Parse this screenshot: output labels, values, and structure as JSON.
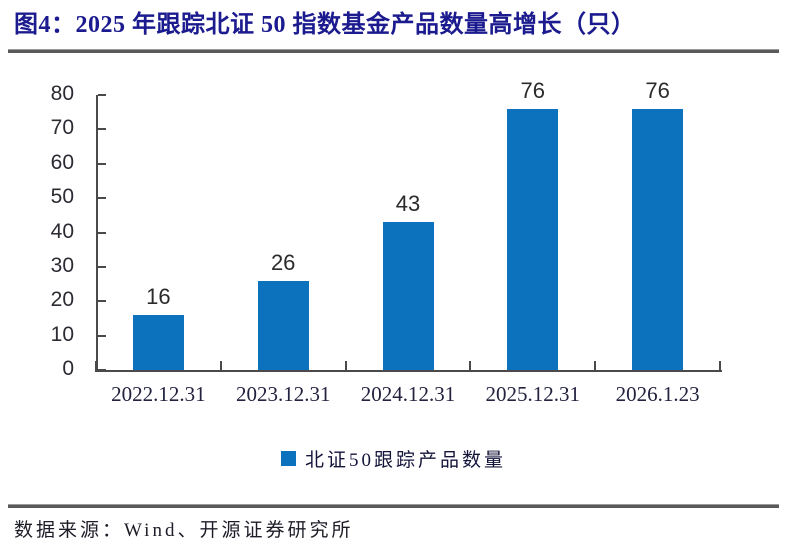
{
  "figure": {
    "title": "图4：2025 年跟踪北证 50 指数基金产品数量高增长（只）",
    "source": "数据来源：Wind、开源证券研究所"
  },
  "chart_data": {
    "type": "bar",
    "title": "2025 年跟踪北证 50 指数基金产品数量高增长（只）",
    "categories": [
      "2022.12.31",
      "2023.12.31",
      "2024.12.31",
      "2025.12.31",
      "2026.1.23"
    ],
    "values": [
      16,
      26,
      43,
      76,
      76
    ],
    "data_labels_shown": true,
    "legend_label": "北证50跟踪产品数量",
    "legend_position": "bottom",
    "xlabel": "",
    "ylabel": "",
    "ylim": [
      0,
      80
    ],
    "yticks": [
      0,
      10,
      20,
      30,
      40,
      50,
      60,
      70,
      80
    ],
    "grid": false,
    "bar_color": "#0d72bd"
  },
  "colors": {
    "title_navy": "#1b1b8f",
    "bar_blue": "#0d72bd",
    "axis_line": "#4a4a4a",
    "divider_gray": "#595959"
  }
}
